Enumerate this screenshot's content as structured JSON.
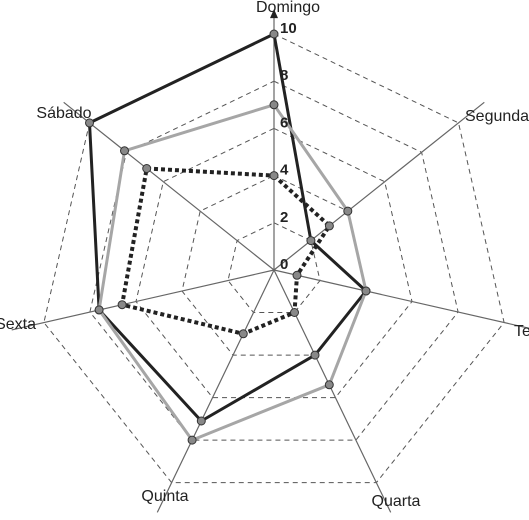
{
  "chart_data": {
    "type": "radar",
    "title": "",
    "categories": [
      "Domingo",
      "Segunda",
      "Terça",
      "Quarta",
      "Quinta",
      "Sexta",
      "Sábado"
    ],
    "rlim": [
      0,
      10
    ],
    "ticks": [
      "0",
      "2",
      "4",
      "6",
      "8",
      "10"
    ],
    "tick_values": [
      0,
      2,
      4,
      6,
      8,
      10
    ],
    "grid": true,
    "legend": "none",
    "series": [
      {
        "values": [
          10,
          2,
          4,
          4,
          7.1,
          7.6,
          10
        ],
        "color": "#222222",
        "style": "solid"
      },
      {
        "values": [
          7,
          4,
          4,
          5.4,
          8,
          7.6,
          8.1
        ],
        "color": "#a6a6a6",
        "style": "solid"
      },
      {
        "values": [
          4,
          3,
          1,
          2,
          3,
          6.6,
          6.9
        ],
        "color": "#222222",
        "style": "dotted"
      }
    ]
  }
}
